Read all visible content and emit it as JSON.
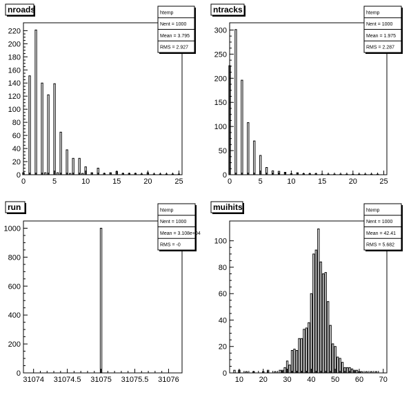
{
  "chart_data": [
    {
      "type": "bar",
      "title": "nroads",
      "stats": {
        "name": "htemp",
        "entries": "Nent = 1000",
        "mean": "Mean  =  3.795",
        "rms": "RMS   =  2.927"
      },
      "xlim": [
        0,
        25.5
      ],
      "ylim": [
        0,
        232
      ],
      "xticks": [
        0,
        5,
        10,
        15,
        20,
        25
      ],
      "yticks": [
        0,
        20,
        40,
        60,
        80,
        100,
        120,
        140,
        160,
        180,
        200,
        220
      ],
      "bin_width": 0.255,
      "bins": [
        [
          0,
          3
        ],
        [
          1,
          151
        ],
        [
          2,
          221
        ],
        [
          3,
          140
        ],
        [
          3.5,
          3
        ],
        [
          4,
          122
        ],
        [
          5,
          139
        ],
        [
          5.5,
          3
        ],
        [
          6,
          65
        ],
        [
          7,
          38
        ],
        [
          7.5,
          2
        ],
        [
          8,
          25
        ],
        [
          9,
          25
        ],
        [
          9.5,
          2
        ],
        [
          10,
          12
        ],
        [
          11,
          3
        ],
        [
          12,
          10
        ],
        [
          13,
          2
        ],
        [
          14,
          3
        ],
        [
          15,
          5
        ],
        [
          16,
          2
        ],
        [
          17,
          2
        ],
        [
          18,
          2
        ],
        [
          19,
          1
        ],
        [
          20,
          3
        ],
        [
          21,
          1
        ],
        [
          22,
          1
        ],
        [
          23,
          1
        ],
        [
          24,
          1
        ],
        [
          25,
          1
        ]
      ]
    },
    {
      "type": "bar",
      "title": "ntracks",
      "stats": {
        "name": "htemp",
        "entries": "Nent = 1000",
        "mean": "Mean  =  1.975",
        "rms": "RMS   =  2.287"
      },
      "xlim": [
        0,
        25.5
      ],
      "ylim": [
        0,
        315
      ],
      "xticks": [
        0,
        5,
        10,
        15,
        20,
        25
      ],
      "yticks": [
        0,
        50,
        100,
        150,
        200,
        250,
        300
      ],
      "bin_width": 0.255,
      "bins": [
        [
          0,
          226
        ],
        [
          1,
          301
        ],
        [
          2,
          196
        ],
        [
          3,
          108
        ],
        [
          4,
          70
        ],
        [
          5,
          40
        ],
        [
          6,
          15
        ],
        [
          7,
          8
        ],
        [
          8,
          7
        ],
        [
          9,
          5
        ],
        [
          10,
          2
        ],
        [
          11,
          4
        ],
        [
          12,
          2
        ],
        [
          13,
          2
        ],
        [
          14,
          2
        ],
        [
          15,
          1
        ],
        [
          16,
          1
        ],
        [
          17,
          1
        ],
        [
          18,
          1
        ],
        [
          19,
          1
        ],
        [
          20,
          1
        ],
        [
          21,
          1
        ],
        [
          22,
          1
        ],
        [
          23,
          1
        ],
        [
          24,
          1
        ]
      ]
    },
    {
      "type": "bar",
      "title": "run",
      "stats": {
        "name": "htemp",
        "entries": "Nent = 1000",
        "mean": "Mean  = 3.108e+04",
        "rms": "RMS   =  -0"
      },
      "xlim": [
        31073.85,
        31076.2
      ],
      "ylim": [
        0,
        1050
      ],
      "xticks": [
        31074,
        31074.5,
        31075,
        31075.5,
        31076
      ],
      "yticks": [
        0,
        200,
        400,
        600,
        800,
        1000
      ],
      "bin_width": 0.024,
      "bins": [
        [
          31075,
          1000
        ]
      ]
    },
    {
      "type": "bar",
      "title": "muihits",
      "stats": {
        "name": "htemp",
        "entries": "Nent = 1000",
        "mean": "Mean  =  42.41",
        "rms": "RMS   =  5.682"
      },
      "xlim": [
        6,
        71.5
      ],
      "ylim": [
        0,
        115
      ],
      "xticks": [
        10,
        20,
        30,
        40,
        50,
        60,
        70
      ],
      "yticks": [
        0,
        20,
        40,
        60,
        80,
        100
      ],
      "bin_width": 0.66,
      "bins": [
        [
          8,
          2
        ],
        [
          10,
          2
        ],
        [
          13,
          1
        ],
        [
          16,
          1
        ],
        [
          20,
          1
        ],
        [
          22,
          2
        ],
        [
          25,
          1
        ],
        [
          27,
          2
        ],
        [
          28,
          2
        ],
        [
          29,
          4
        ],
        [
          30,
          9
        ],
        [
          31,
          6
        ],
        [
          32,
          17
        ],
        [
          33,
          18
        ],
        [
          34,
          17
        ],
        [
          35,
          26
        ],
        [
          36,
          26
        ],
        [
          37,
          33
        ],
        [
          38,
          34
        ],
        [
          39,
          38
        ],
        [
          40,
          60
        ],
        [
          41,
          90
        ],
        [
          42,
          93
        ],
        [
          43,
          109
        ],
        [
          44,
          84
        ],
        [
          45,
          75
        ],
        [
          46,
          76
        ],
        [
          47,
          54
        ],
        [
          48,
          36
        ],
        [
          49,
          22
        ],
        [
          50,
          20
        ],
        [
          51,
          12
        ],
        [
          52,
          11
        ],
        [
          53,
          8
        ],
        [
          54,
          4
        ],
        [
          55,
          4
        ],
        [
          56,
          4
        ],
        [
          57,
          3
        ],
        [
          58,
          2
        ],
        [
          59,
          2
        ],
        [
          60,
          1
        ],
        [
          61,
          1
        ],
        [
          63,
          1
        ],
        [
          65,
          1
        ],
        [
          67,
          1
        ]
      ]
    }
  ]
}
